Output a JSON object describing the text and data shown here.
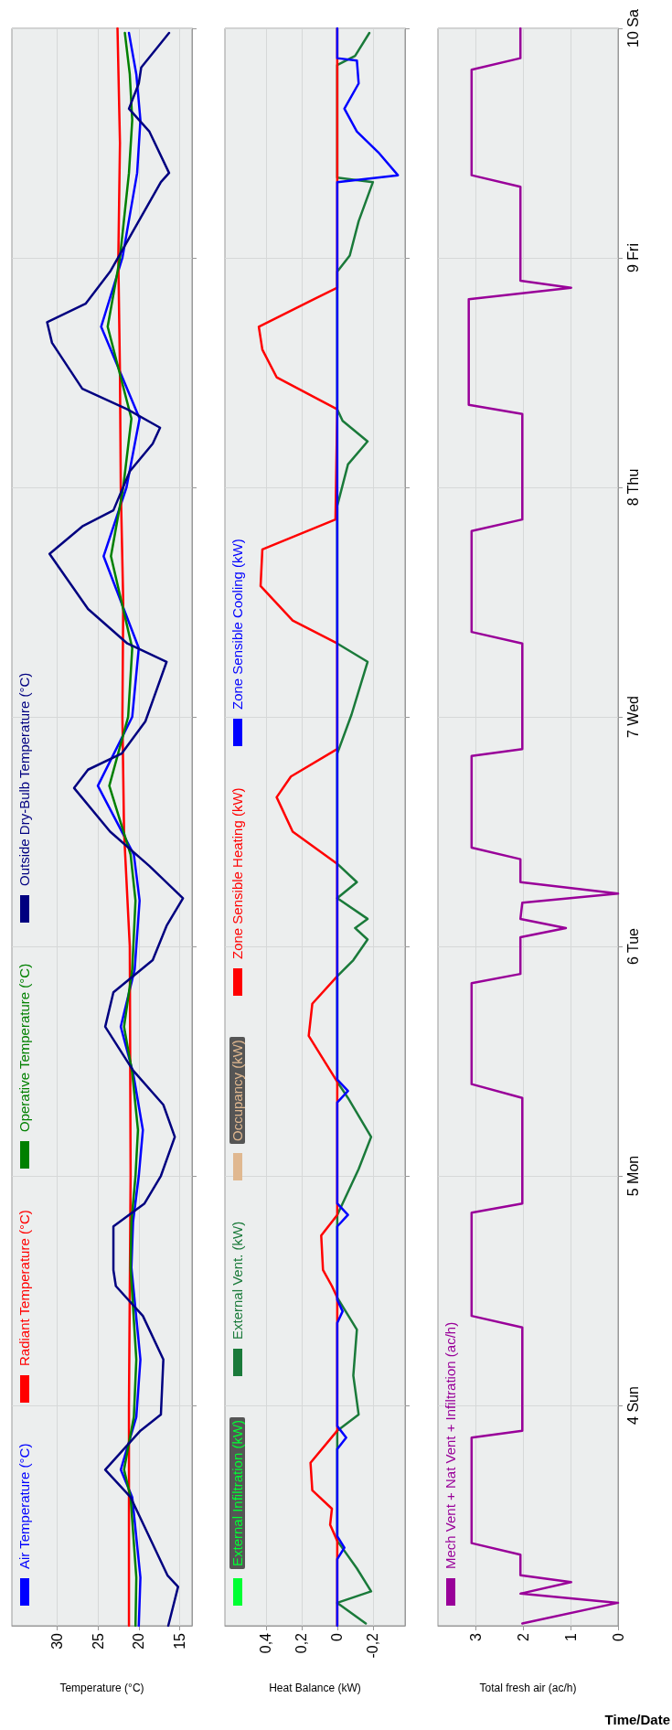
{
  "chart_data": [
    {
      "type": "line",
      "orientation": "horizontal",
      "xlabel": "Temperature (°C)",
      "ylim": [
        3.04,
        10
      ],
      "yticks": [
        {
          "value": 4,
          "label": null
        },
        {
          "value": 5,
          "label": null
        },
        {
          "value": 6,
          "label": null
        },
        {
          "value": 7,
          "label": null
        },
        {
          "value": 8,
          "label": null
        },
        {
          "value": 9,
          "label": null
        },
        {
          "value": 10,
          "label": null
        }
      ],
      "xlim": [
        35.5,
        13.5
      ],
      "xticks": [
        30,
        25,
        20,
        15
      ],
      "grid": true,
      "legend": "left",
      "tick_labels": "x",
      "series": [
        {
          "name": "Air Temperature (°C)",
          "color": "#0000ff",
          "x": [
            3.04,
            3.25,
            3.6,
            3.72,
            3.95,
            4.2,
            4.6,
            4.8,
            5.0,
            5.2,
            5.45,
            5.65,
            5.9,
            6.2,
            6.4,
            6.7,
            7.0,
            7.3,
            7.7,
            8.0,
            8.3,
            8.7,
            9.0,
            9.37,
            9.6,
            9.8,
            9.98
          ],
          "values": [
            20,
            19.8,
            20.8,
            22.2,
            20.3,
            19.8,
            20.9,
            20.7,
            20,
            19.5,
            20.7,
            22.2,
            20.5,
            19.9,
            20.6,
            25,
            20.8,
            20,
            24.3,
            21.5,
            19.9,
            24.6,
            22,
            20.2,
            19.8,
            20.3,
            21.2
          ]
        },
        {
          "name": "Radiant Temperature (°C)",
          "color": "#ff0000",
          "x": [
            3.04,
            4,
            5,
            6,
            6.5,
            7,
            7.5,
            8,
            8.5,
            9,
            9.5,
            10
          ],
          "values": [
            21.2,
            21.2,
            21,
            21.1,
            21.8,
            22,
            21.9,
            22.2,
            22.3,
            22.5,
            22.3,
            22.6
          ]
        },
        {
          "name": "Operative Temperature (°C)",
          "color": "#008000",
          "x": [
            3.04,
            3.25,
            3.6,
            3.72,
            3.95,
            4.2,
            4.6,
            4.8,
            5.0,
            5.2,
            5.45,
            5.65,
            5.9,
            6.2,
            6.4,
            6.7,
            7.0,
            7.3,
            7.7,
            8.0,
            8.3,
            8.7,
            9.0,
            9.37,
            9.6,
            9.8,
            9.98
          ],
          "values": [
            20.4,
            20.3,
            21,
            21.8,
            20.6,
            20.3,
            21,
            20.9,
            20.4,
            20.1,
            20.8,
            21.8,
            20.8,
            20.4,
            21,
            23.6,
            21.3,
            20.8,
            23.4,
            21.9,
            20.9,
            23.8,
            22.3,
            21.2,
            20.8,
            21.1,
            21.7
          ]
        },
        {
          "name": "Outside Dry-Bulb Temperature (°C)",
          "color": "#000080",
          "x": [
            3.04,
            3.21,
            3.26,
            3.6,
            3.72,
            3.89,
            3.96,
            4.2,
            4.39,
            4.52,
            4.59,
            4.78,
            4.88,
            5.0,
            5.17,
            5.31,
            5.46,
            5.65,
            5.8,
            5.94,
            6.09,
            6.21,
            6.35,
            6.5,
            6.69,
            6.77,
            6.84,
            6.98,
            7.24,
            7.32,
            7.47,
            7.71,
            7.83,
            7.9,
            8.07,
            8.19,
            8.26,
            8.34,
            8.43,
            8.63,
            8.72,
            8.8,
            8.94,
            9.11,
            9.33,
            9.37,
            9.55,
            9.65,
            9.76,
            9.83,
            9.98
          ],
          "values": [
            16.4,
            15.2,
            16.5,
            21,
            24.1,
            19.8,
            17.3,
            17,
            19.5,
            22.8,
            23.1,
            23.1,
            19.3,
            17.3,
            15.6,
            17,
            20.7,
            24.1,
            23.1,
            18.3,
            16.6,
            14.6,
            18.7,
            23.5,
            27.9,
            26.2,
            22.1,
            19.2,
            16.6,
            21.4,
            26.2,
            30.9,
            26.9,
            23.1,
            21.1,
            18.3,
            17.4,
            21.4,
            26.9,
            30.6,
            31.2,
            26.5,
            23.5,
            20.8,
            17.3,
            16.3,
            18.7,
            21.2,
            20,
            19.7,
            16.3
          ]
        }
      ]
    },
    {
      "type": "line",
      "orientation": "horizontal",
      "xlabel": "Heat Balance (kW)",
      "ylim": [
        3.04,
        10
      ],
      "yticks": [
        {
          "value": 4,
          "label": null
        },
        {
          "value": 5,
          "label": null
        },
        {
          "value": 6,
          "label": null
        },
        {
          "value": 7,
          "label": null
        },
        {
          "value": 8,
          "label": null
        },
        {
          "value": 9,
          "label": null
        },
        {
          "value": 10,
          "label": null
        }
      ],
      "xlim": [
        0.63,
        -0.38
      ],
      "xticks": [
        {
          "value": 0.4,
          "label": "0,4"
        },
        {
          "value": 0.2,
          "label": "0,2"
        },
        0,
        {
          "value": -0.2,
          "label": "-0,2"
        }
      ],
      "grid": true,
      "legend": "left",
      "tick_labels": "x",
      "series": [
        {
          "name": "External Infiltration (kW)",
          "color": "#00ff33"
        },
        {
          "name": "External Vent. (kW)",
          "color": "#1a7a3a",
          "x": [
            3.05,
            3.14,
            3.19,
            3.29,
            3.41,
            3.89,
            3.96,
            4.13,
            4.33,
            4.47,
            4.83,
            5.03,
            5.17,
            5.34,
            5.41,
            5.87,
            5.94,
            6.03,
            6.08,
            6.12,
            6.21,
            6.28,
            6.36,
            6.84,
            7.01,
            7.24,
            7.32,
            7.92,
            8.1,
            8.2,
            8.29,
            8.34,
            8.94,
            9.01,
            9.16,
            9.33,
            9.35,
            9.84,
            9.88,
            9.98
          ],
          "values": [
            -0.16,
            0,
            -0.19,
            -0.11,
            0,
            0,
            -0.12,
            -0.09,
            -0.11,
            0,
            0,
            -0.12,
            -0.19,
            -0.06,
            0,
            0,
            -0.09,
            -0.17,
            -0.1,
            -0.17,
            0,
            -0.11,
            0,
            0,
            -0.08,
            -0.17,
            0,
            0,
            -0.06,
            -0.17,
            -0.03,
            0,
            0,
            -0.07,
            -0.12,
            -0.2,
            0,
            0,
            -0.1,
            -0.18
          ]
        },
        {
          "name": "Occupancy (kW)",
          "color": "#e0b890"
        },
        {
          "name": "Zone Sensible Heating (kW)",
          "color": "#ff0000",
          "x": [
            3.04,
            3.41,
            3.48,
            3.55,
            3.63,
            3.75,
            3.89,
            4.47,
            4.52,
            4.59,
            4.74,
            4.83,
            5.41,
            5.61,
            5.75,
            5.87,
            6.36,
            6.5,
            6.65,
            6.74,
            6.86,
            7.32,
            7.42,
            7.57,
            7.73,
            7.86,
            8.34,
            8.48,
            8.6,
            8.7,
            8.82,
            8.87,
            10
          ],
          "values": [
            0,
            0,
            0.04,
            0.03,
            0.14,
            0.15,
            0,
            0,
            0.03,
            0.08,
            0.09,
            0,
            0,
            0.16,
            0.14,
            0,
            0,
            0.25,
            0.34,
            0.26,
            0,
            0,
            0.25,
            0.43,
            0.42,
            0.01,
            0,
            0.34,
            0.42,
            0.44,
            0.13,
            0,
            0
          ]
        },
        {
          "name": "Zone Sensible Cooling (kW)",
          "color": "#0000ff",
          "x": [
            3.04,
            3.33,
            3.38,
            3.43,
            3.81,
            3.86,
            3.91,
            4.36,
            4.41,
            4.46,
            4.78,
            4.83,
            4.88,
            5.32,
            5.37,
            5.42,
            9.33,
            9.36,
            9.46,
            9.55,
            9.65,
            9.76,
            9.86,
            9.87,
            10
          ],
          "values": [
            0,
            0,
            -0.04,
            0,
            0,
            -0.05,
            0,
            0,
            -0.03,
            0,
            0,
            -0.06,
            0,
            0,
            -0.06,
            0,
            0,
            -0.34,
            -0.23,
            -0.11,
            -0.04,
            -0.12,
            -0.11,
            0,
            0
          ]
        }
      ]
    },
    {
      "type": "line",
      "orientation": "horizontal",
      "xlabel": "Total fresh air (ac/h)",
      "annotations": [
        "Time/Date"
      ],
      "ylim": [
        3.04,
        10
      ],
      "yticks": [
        {
          "value": 4,
          "label": "4 Sun"
        },
        {
          "value": 5,
          "label": "5 Mon"
        },
        {
          "value": 6,
          "label": "6 Tue"
        },
        {
          "value": 7,
          "label": "7 Wed"
        },
        {
          "value": 8,
          "label": "8 Thu"
        },
        {
          "value": 9,
          "label": "9 Fri"
        },
        {
          "value": 10,
          "label": "10 Sa"
        }
      ],
      "xlim": [
        3.8,
        0
      ],
      "xticks": [
        3,
        2,
        1,
        0
      ],
      "grid": true,
      "legend": "left",
      "series": [
        {
          "name": "Mech Vent + Nat Vent + Infiltration (ac/h)",
          "color": "#990099",
          "x": [
            3.05,
            3.14,
            3.18,
            3.23,
            3.26,
            3.35,
            3.4,
            3.86,
            3.89,
            4.34,
            4.39,
            4.84,
            4.88,
            5.34,
            5.4,
            5.84,
            5.88,
            6.04,
            6.08,
            6.12,
            6.19,
            6.23,
            6.28,
            6.38,
            6.43,
            6.83,
            6.86,
            7.32,
            7.37,
            7.81,
            7.86,
            8.32,
            8.36,
            8.82,
            8.87,
            8.9,
            9.31,
            9.36,
            9.82,
            9.87,
            10
          ],
          "values": [
            2.02,
            0,
            2.06,
            0.99,
            2.06,
            2.06,
            3.09,
            3.09,
            2.02,
            2.02,
            3.09,
            3.09,
            2.02,
            2.02,
            3.09,
            3.09,
            2.06,
            2.06,
            1.1,
            2.06,
            2.02,
            0,
            2.06,
            2.06,
            3.09,
            3.09,
            2.02,
            2.02,
            3.09,
            3.09,
            2.02,
            2.02,
            3.15,
            3.15,
            0.99,
            2.06,
            2.06,
            3.09,
            3.09,
            2.06,
            2.06
          ]
        }
      ]
    }
  ]
}
